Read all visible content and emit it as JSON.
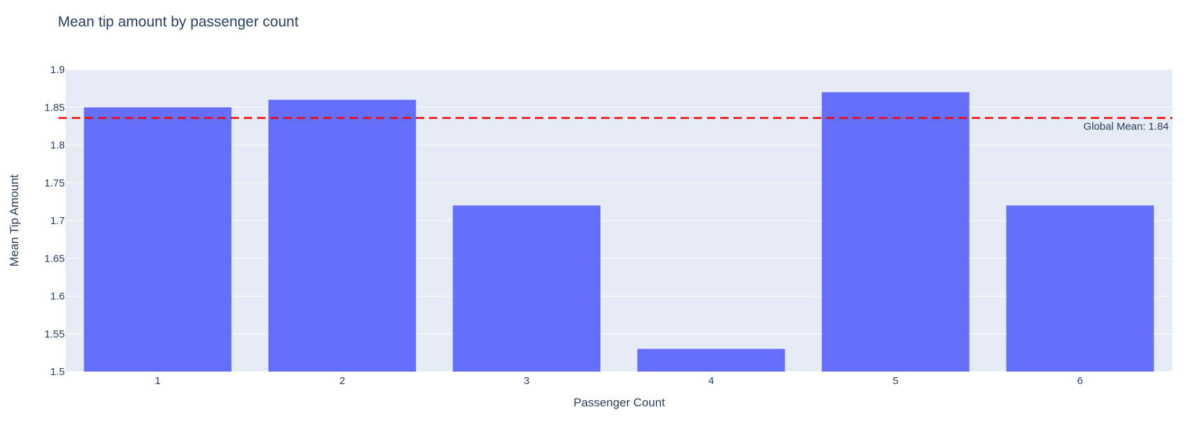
{
  "chart_data": {
    "type": "bar",
    "title": "Mean tip amount by passenger count",
    "xlabel": "Passenger Count",
    "ylabel": "Mean Tip Amount",
    "categories": [
      "1",
      "2",
      "3",
      "4",
      "5",
      "6"
    ],
    "values": [
      1.85,
      1.86,
      1.72,
      1.53,
      1.87,
      1.72
    ],
    "ylim": [
      1.5,
      1.9
    ],
    "yticks": [
      "1.5",
      "1.55",
      "1.6",
      "1.65",
      "1.7",
      "1.75",
      "1.8",
      "1.85",
      "1.9"
    ],
    "grid": true,
    "reference_line": {
      "value": 1.836,
      "label": "Global Mean: 1.84",
      "color": "#ff0000",
      "style": "dashed"
    }
  },
  "colors": {
    "bar": "#636efa",
    "plot_background": "#e5ecf6",
    "gridline": "#ffffff",
    "text": "#2a3f5f"
  }
}
